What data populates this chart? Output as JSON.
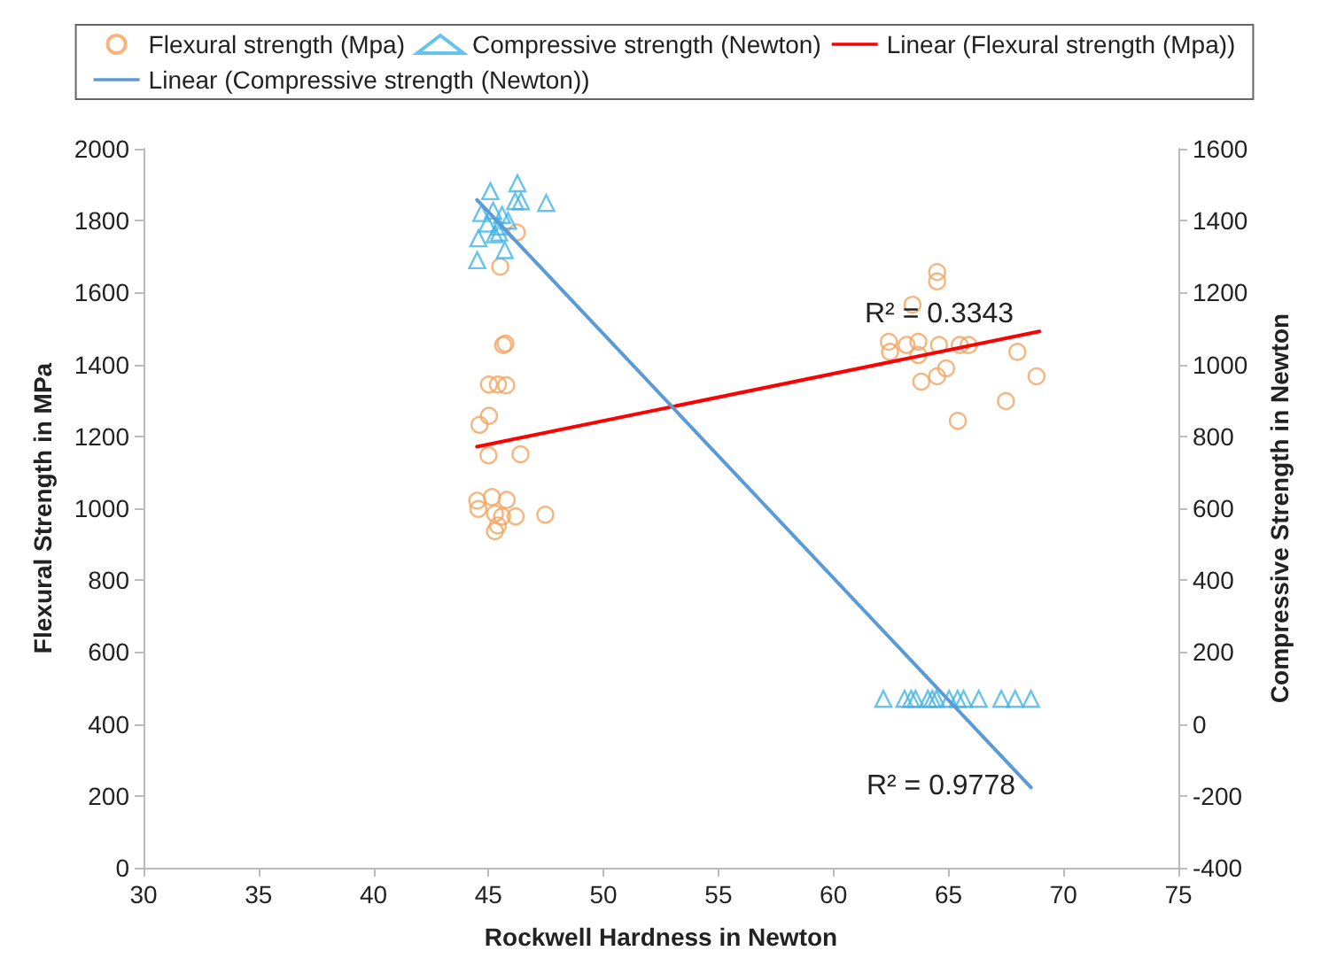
{
  "chart_data": {
    "type": "scatter",
    "xlabel": "Rockwell Hardness in Newton",
    "ylabel": "Flexural Strength in MPa",
    "y2label": "Compressive Strength in Newton",
    "xlim": [
      30,
      75
    ],
    "xticks": [
      30,
      35,
      40,
      45,
      50,
      55,
      60,
      65,
      70,
      75
    ],
    "ylim": [
      0,
      2000
    ],
    "yticks": [
      0,
      200,
      400,
      600,
      800,
      1000,
      1200,
      1400,
      1600,
      1800,
      2000
    ],
    "y2lim": [
      -400,
      1600
    ],
    "y2ticks": [
      -400,
      -200,
      0,
      200,
      400,
      600,
      800,
      1000,
      1200,
      1400,
      1600
    ],
    "grid": false,
    "legend": "top",
    "series": [
      {
        "name": "Flexural strength (Mpa)",
        "marker": "circle",
        "color": "#f5a25e",
        "x": [
          46.23,
          45.51,
          45.64,
          45.74,
          45.02,
          45.41,
          45.77,
          45.02,
          44.61,
          45.0,
          46.39,
          44.51,
          44.56,
          45.15,
          45.79,
          45.28,
          45.59,
          46.18,
          45.28,
          47.47,
          45.41,
          64.51,
          64.51,
          63.44,
          62.41,
          62.46,
          63.18,
          63.69,
          63.69,
          64.59,
          65.49,
          65.88,
          68.0,
          68.83,
          64.9,
          64.51,
          63.82,
          67.5,
          65.41
        ],
        "values": [
          1767,
          1672,
          1454,
          1458,
          1344,
          1344,
          1342,
          1257,
          1232,
          1147,
          1150,
          1021,
          998,
          1031,
          1023,
          985,
          977,
          977,
          936,
          982,
          952,
          1657,
          1631,
          1566,
          1463,
          1435,
          1454,
          1463,
          1426,
          1454,
          1454,
          1454,
          1435,
          1367,
          1389,
          1367,
          1352,
          1298,
          1243
        ]
      },
      {
        "name": "Compressive strength (Newton)",
        "marker": "triangle",
        "color": "#3fb4e8",
        "axis": "y2",
        "x": [
          45.08,
          46.26,
          46.16,
          46.41,
          47.51,
          44.69,
          45.2,
          45.59,
          45.85,
          44.95,
          45.46,
          45.27,
          44.56,
          45.71,
          44.51,
          45.46,
          62.17,
          63.09,
          63.38,
          63.57,
          64.11,
          64.3,
          64.48,
          65.03,
          65.4,
          65.66,
          66.32,
          67.3,
          67.9,
          68.59
        ],
        "values": [
          1482,
          1504,
          1454,
          1454,
          1449,
          1421,
          1428,
          1416,
          1400,
          1392,
          1384,
          1362,
          1351,
          1318,
          1290,
          1367,
          70,
          70,
          70,
          70,
          70,
          70,
          70,
          70,
          70,
          70,
          70,
          70,
          70,
          70
        ]
      },
      {
        "name": "Linear (Flexural strength (Mpa))",
        "type": "line",
        "marker": "none",
        "color": "#ff0000",
        "x": [
          44.5,
          68.96
        ],
        "values": [
          1171,
          1492
        ]
      },
      {
        "name": "Linear (Compressive strength (Newton))",
        "type": "line",
        "marker": "none",
        "color": "#5b9bd5",
        "axis": "y2",
        "x": [
          44.5,
          68.59
        ],
        "values": [
          1458,
          -177
        ]
      }
    ],
    "annotations": [
      {
        "text": "R² = 0.3343",
        "x": 64.6,
        "y": 1489
      },
      "R² = 0.9778"
    ]
  }
}
